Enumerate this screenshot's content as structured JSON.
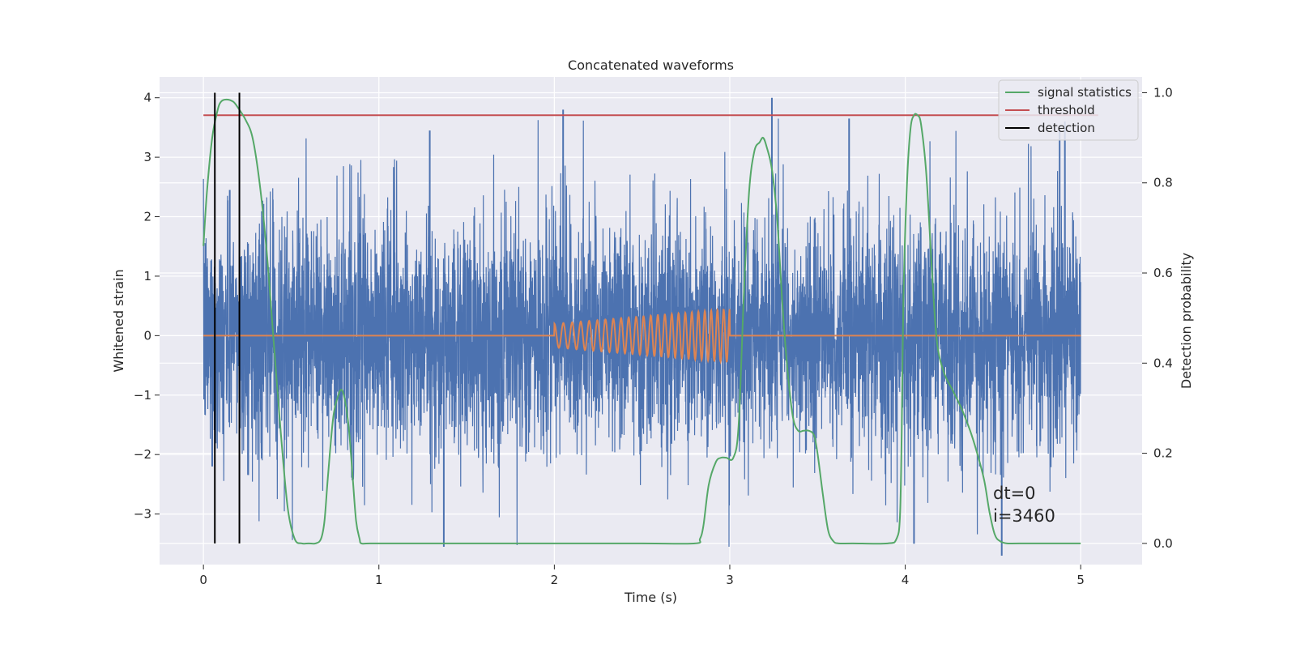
{
  "chart_data": {
    "type": "line",
    "title": "Concatenated waveforms",
    "xlabel": "Time (s)",
    "ylabel": "Whitened strain",
    "y2label": "Detection probability",
    "xlim": [
      -0.25,
      5.35
    ],
    "ylim": [
      -3.85,
      4.35
    ],
    "y2lim": [
      -0.047,
      1.035
    ],
    "xticks": [
      0,
      1,
      2,
      3,
      4,
      5
    ],
    "xtick_labels": [
      "0",
      "1",
      "2",
      "3",
      "4",
      "5"
    ],
    "yticks": [
      -3,
      -2,
      -1,
      0,
      1,
      2,
      3,
      4
    ],
    "ytick_labels": [
      "−3",
      "−2",
      "−1",
      "0",
      "1",
      "2",
      "3",
      "4"
    ],
    "y2ticks": [
      0.0,
      0.2,
      0.4,
      0.6,
      0.8,
      1.0
    ],
    "y2tick_labels": [
      "0.0",
      "0.2",
      "0.4",
      "0.6",
      "0.8",
      "1.0"
    ],
    "grid": true,
    "legend_position": "top-right",
    "background": "#eaeaf2",
    "series": [
      {
        "kind": "noise",
        "color": "#4c72b0",
        "x_range": [
          0,
          5
        ],
        "envelope": "zero-mean noise, roughly ±2.5 typical with spikes to about 4 and -3.5"
      },
      {
        "kind": "chirp",
        "color": "#dd8452",
        "x_range": [
          0,
          5
        ],
        "active_range": [
          2.0,
          3.0
        ],
        "amplitude_range": [
          0.2,
          0.45
        ],
        "cycles": 24
      },
      {
        "name": "signal statistics",
        "axis": "right",
        "color": "#55a868",
        "x": [
          0.0,
          0.02,
          0.05,
          0.08,
          0.1,
          0.13,
          0.17,
          0.2,
          0.24,
          0.28,
          0.32,
          0.36,
          0.4,
          0.44,
          0.48,
          0.52,
          0.56,
          0.6,
          0.64,
          0.67,
          0.69,
          0.71,
          0.74,
          0.77,
          0.79,
          0.81,
          0.83,
          0.85,
          0.87,
          0.89,
          0.9,
          0.95,
          1.2,
          1.6,
          2.0,
          2.5,
          2.8,
          2.83,
          2.85,
          2.88,
          2.92,
          2.95,
          2.98,
          3.02,
          3.05,
          3.08,
          3.11,
          3.14,
          3.17,
          3.19,
          3.21,
          3.24,
          3.27,
          3.3,
          3.33,
          3.36,
          3.39,
          3.42,
          3.45,
          3.48,
          3.5,
          3.53,
          3.56,
          3.59,
          3.62,
          3.7,
          3.9,
          3.95,
          3.97,
          3.98,
          3.99,
          4.01,
          4.03,
          4.05,
          4.07,
          4.09,
          4.12,
          4.15,
          4.18,
          4.22,
          4.27,
          4.32,
          4.37,
          4.41,
          4.45,
          4.48,
          4.51,
          4.54,
          4.58,
          4.65,
          5.0
        ],
        "values": [
          0.66,
          0.78,
          0.9,
          0.96,
          0.98,
          0.985,
          0.98,
          0.965,
          0.94,
          0.9,
          0.8,
          0.65,
          0.45,
          0.25,
          0.08,
          0.01,
          0.0,
          0.0,
          0.0,
          0.01,
          0.05,
          0.15,
          0.28,
          0.33,
          0.34,
          0.31,
          0.25,
          0.15,
          0.05,
          0.01,
          0.0,
          0.0,
          0.0,
          0.0,
          0.0,
          0.0,
          0.0,
          0.01,
          0.04,
          0.13,
          0.18,
          0.19,
          0.19,
          0.19,
          0.26,
          0.55,
          0.78,
          0.87,
          0.89,
          0.9,
          0.88,
          0.83,
          0.72,
          0.53,
          0.38,
          0.28,
          0.25,
          0.25,
          0.25,
          0.24,
          0.2,
          0.11,
          0.03,
          0.005,
          0.0,
          0.0,
          0.0,
          0.01,
          0.06,
          0.25,
          0.55,
          0.8,
          0.92,
          0.95,
          0.95,
          0.93,
          0.82,
          0.62,
          0.45,
          0.38,
          0.34,
          0.3,
          0.25,
          0.2,
          0.14,
          0.07,
          0.02,
          0.005,
          0.0,
          0.0,
          0.0
        ]
      },
      {
        "name": "threshold",
        "axis": "right",
        "color": "#c44e52",
        "x": [
          0,
          5.1
        ],
        "values": [
          0.95,
          0.95
        ]
      },
      {
        "name": "detection",
        "axis": "right",
        "color": "#000000",
        "x": [
          0.065,
          0.205
        ],
        "values_span": [
          0.0,
          1.0
        ]
      }
    ],
    "annotations": [
      "dt=0",
      "i=3460"
    ]
  }
}
